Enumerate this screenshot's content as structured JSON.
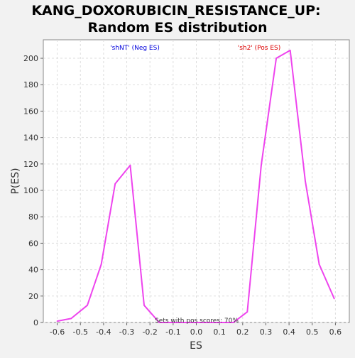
{
  "chart_data": {
    "type": "line",
    "title_line1": "KANG_DOXORUBICIN_RESISTANCE_UP:",
    "title_line2": "Random ES distribution",
    "xlabel": "ES",
    "ylabel": "P(ES)",
    "xlim": [
      -0.66,
      0.66
    ],
    "ylim": [
      0,
      214
    ],
    "x_ticks": [
      -0.6,
      -0.5,
      -0.4,
      -0.3,
      -0.2,
      -0.1,
      0.0,
      0.1,
      0.2,
      0.3,
      0.4,
      0.5,
      0.6
    ],
    "x_tick_labels": [
      "-0.6",
      "-0.5",
      "-0.4",
      "-0.3",
      "-0.2",
      "-0.1",
      "0.0",
      "0.1",
      "0.2",
      "0.3",
      "0.4",
      "0.5",
      "0.6"
    ],
    "y_ticks": [
      0,
      20,
      40,
      60,
      80,
      100,
      120,
      140,
      160,
      180,
      200
    ],
    "y_tick_labels": [
      "0",
      "20",
      "40",
      "60",
      "80",
      "100",
      "120",
      "140",
      "160",
      "180",
      "200"
    ],
    "grid": true,
    "series": [
      {
        "color": "#ee44ee",
        "x": [
          -0.6,
          -0.54,
          -0.47,
          -0.41,
          -0.35,
          -0.285,
          -0.225,
          -0.16,
          -0.1,
          -0.04,
          0.03,
          0.09,
          0.16,
          0.22,
          0.28,
          0.345,
          0.405,
          0.47,
          0.53,
          0.595
        ],
        "y": [
          1,
          3,
          13,
          44,
          105,
          119,
          13,
          0,
          0,
          0,
          0,
          0,
          0,
          8,
          119,
          200,
          206,
          107,
          44,
          18
        ]
      }
    ],
    "annotations": {
      "neg_label": "'shNT' (Neg ES)",
      "pos_label": "'sh2' (Pos ES)",
      "neg_color": "#0000dd",
      "pos_color": "#dd0000",
      "sets_text": "Sets with pos scores: 70%"
    }
  }
}
